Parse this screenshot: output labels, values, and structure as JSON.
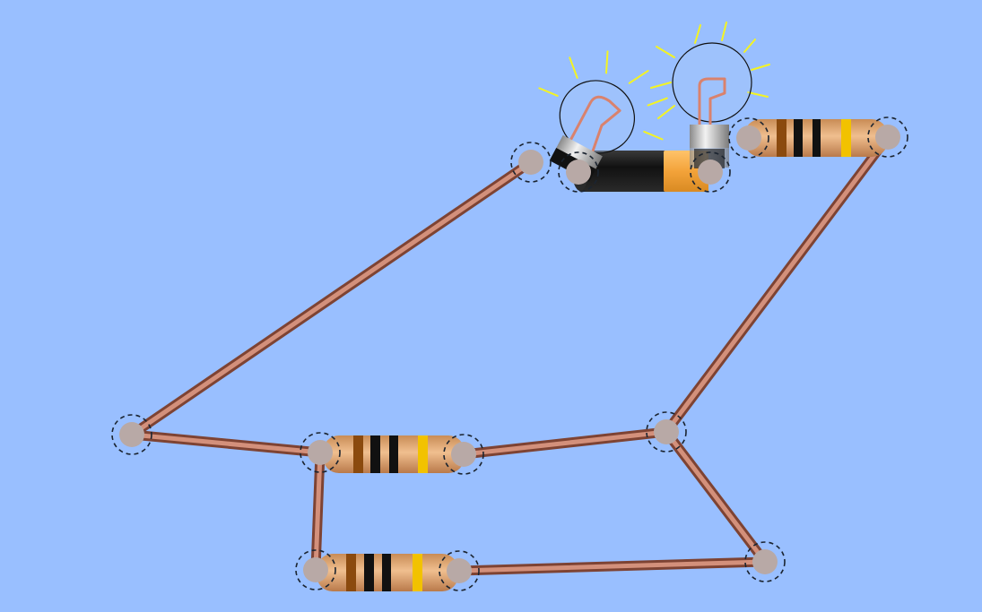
{
  "app": {
    "background_color": "#99bfff"
  },
  "colors": {
    "wire": "#c47e68",
    "resistor_body": "#d9a06b",
    "band_brown": "#8b4a0e",
    "band_black": "#111111",
    "band_gold": "#f2c200",
    "battery_black": "#1a1a1a",
    "battery_orange": "#f3a33a",
    "bulb_glow": "#f4f421",
    "filament": "#d9826d"
  },
  "circuit": {
    "wires": [
      {
        "id": "wire-1",
        "label": "wire"
      },
      {
        "id": "wire-2",
        "label": "wire"
      },
      {
        "id": "wire-3",
        "label": "wire"
      },
      {
        "id": "wire-4",
        "label": "wire"
      },
      {
        "id": "wire-5",
        "label": "wire"
      },
      {
        "id": "wire-6",
        "label": "wire"
      },
      {
        "id": "wire-7",
        "label": "wire"
      }
    ],
    "resistors": [
      {
        "id": "resistor-top-right",
        "bands": [
          "brown",
          "black",
          "black",
          "gold"
        ]
      },
      {
        "id": "resistor-middle",
        "bands": [
          "brown",
          "black",
          "black",
          "gold"
        ]
      },
      {
        "id": "resistor-bottom",
        "bands": [
          "brown",
          "black",
          "black",
          "gold"
        ]
      }
    ],
    "battery": {
      "id": "battery",
      "polarity": "negative-left-positive-right"
    },
    "bulbs": [
      {
        "id": "bulb-left",
        "state": "lit"
      },
      {
        "id": "bulb-right",
        "state": "lit"
      }
    ]
  }
}
